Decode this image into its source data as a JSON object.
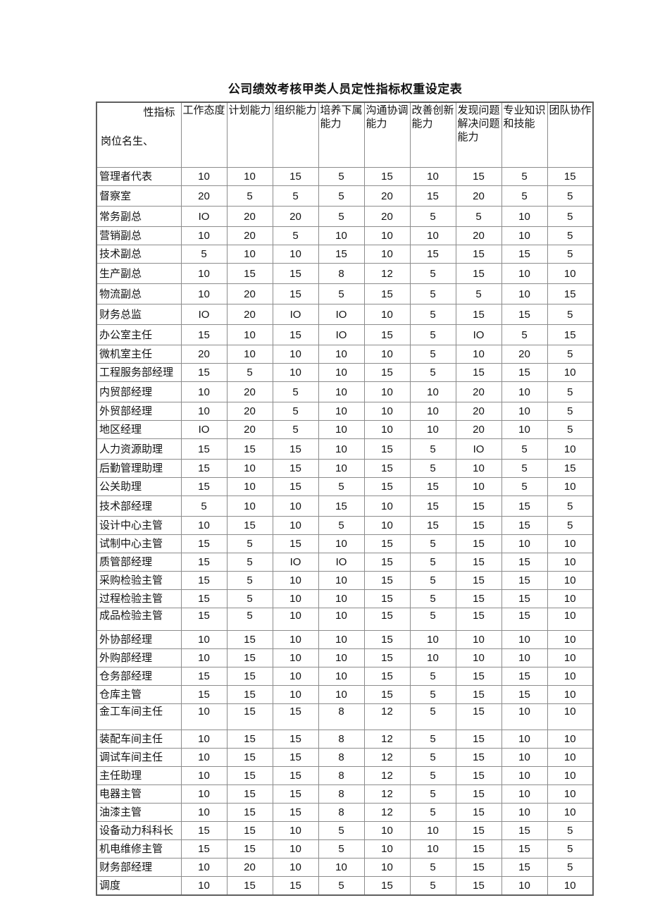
{
  "title": "公司绩效考核甲类人员定性指标权重设定表",
  "table": {
    "corner": {
      "top_right": "性指标",
      "bottom_left": "岗位名生、"
    },
    "columns": [
      "工作态度",
      "计划能力",
      "组织能力",
      "培养下属能力",
      "沟通协调能力",
      "改善创新能力",
      "发现问题解决问题能力",
      "专业知识和技能",
      "团队协作"
    ],
    "rows": [
      {
        "label": "管理者代表",
        "values": [
          "10",
          "10",
          "15",
          "5",
          "15",
          "10",
          "15",
          "5",
          "15"
        ]
      },
      {
        "label": "督察室",
        "values": [
          "20",
          "5",
          "5",
          "5",
          "20",
          "15",
          "20",
          "5",
          "5"
        ]
      },
      {
        "label": "常务副总",
        "values": [
          "IO",
          "20",
          "20",
          "5",
          "20",
          "5",
          "5",
          "10",
          "5"
        ]
      },
      {
        "label": "营销副总",
        "values": [
          "10",
          "20",
          "5",
          "10",
          "10",
          "10",
          "20",
          "10",
          "5"
        ]
      },
      {
        "label": "技术副总",
        "values": [
          "5",
          "10",
          "10",
          "15",
          "10",
          "15",
          "15",
          "15",
          "5"
        ]
      },
      {
        "label": "生产副总",
        "values": [
          "10",
          "15",
          "15",
          "8",
          "12",
          "5",
          "15",
          "10",
          "10"
        ]
      },
      {
        "label": "物流副总",
        "values": [
          "10",
          "20",
          "15",
          "5",
          "15",
          "5",
          "5",
          "10",
          "15"
        ]
      },
      {
        "label": "财务总监",
        "values": [
          "IO",
          "20",
          "IO",
          "IO",
          "10",
          "5",
          "15",
          "15",
          "5"
        ]
      },
      {
        "label": "办公室主任",
        "values": [
          "15",
          "10",
          "15",
          "IO",
          "15",
          "5",
          "IO",
          "5",
          "15"
        ]
      },
      {
        "label": "微机室主任",
        "values": [
          "20",
          "10",
          "10",
          "10",
          "10",
          "5",
          "10",
          "20",
          "5"
        ]
      },
      {
        "label": "工程服务部经理",
        "values": [
          "15",
          "5",
          "10",
          "10",
          "15",
          "5",
          "15",
          "15",
          "10"
        ]
      },
      {
        "label": "内贸部经理",
        "values": [
          "10",
          "20",
          "5",
          "10",
          "10",
          "10",
          "20",
          "10",
          "5"
        ]
      },
      {
        "label": "外贸部经理",
        "values": [
          "10",
          "20",
          "5",
          "10",
          "10",
          "10",
          "20",
          "10",
          "5"
        ]
      },
      {
        "label": "地区经理",
        "values": [
          "IO",
          "20",
          "5",
          "10",
          "10",
          "10",
          "20",
          "10",
          "5"
        ]
      },
      {
        "label": "人力资源助理",
        "values": [
          "15",
          "15",
          "15",
          "10",
          "15",
          "5",
          "IO",
          "5",
          "10"
        ]
      },
      {
        "label": "后勤管理助理",
        "values": [
          "15",
          "10",
          "15",
          "10",
          "15",
          "5",
          "10",
          "5",
          "15"
        ]
      },
      {
        "label": "公关助理",
        "values": [
          "15",
          "10",
          "15",
          "5",
          "15",
          "15",
          "10",
          "5",
          "10"
        ]
      },
      {
        "label": "技术部经理",
        "values": [
          "5",
          "10",
          "10",
          "15",
          "10",
          "15",
          "15",
          "15",
          "5"
        ]
      },
      {
        "label": "设计中心主管",
        "values": [
          "10",
          "15",
          "10",
          "5",
          "10",
          "15",
          "15",
          "15",
          "5"
        ]
      },
      {
        "label": "试制中心主管",
        "values": [
          "15",
          "5",
          "15",
          "10",
          "15",
          "5",
          "15",
          "10",
          "10"
        ]
      },
      {
        "label": "质管部经理",
        "values": [
          "15",
          "5",
          "IO",
          "IO",
          "15",
          "5",
          "15",
          "15",
          "10"
        ]
      },
      {
        "label": "采购检验主管",
        "values": [
          "15",
          "5",
          "10",
          "10",
          "15",
          "5",
          "15",
          "15",
          "10"
        ]
      },
      {
        "label": "过程检验主管",
        "values": [
          "15",
          "5",
          "10",
          "10",
          "15",
          "5",
          "15",
          "15",
          "10"
        ]
      },
      {
        "label": "成品检验主管",
        "values": [
          "15",
          "5",
          "10",
          "10",
          "15",
          "5",
          "15",
          "15",
          "10"
        ]
      },
      {
        "label": "外协部经理",
        "values": [
          "10",
          "15",
          "10",
          "10",
          "15",
          "10",
          "10",
          "10",
          "10"
        ]
      },
      {
        "label": "外购部经理",
        "values": [
          "10",
          "15",
          "10",
          "10",
          "15",
          "10",
          "10",
          "10",
          "10"
        ]
      },
      {
        "label": "仓务部经理",
        "values": [
          "15",
          "15",
          "10",
          "10",
          "15",
          "5",
          "15",
          "15",
          "10"
        ]
      },
      {
        "label": "仓库主管",
        "values": [
          "15",
          "15",
          "10",
          "10",
          "15",
          "5",
          "15",
          "15",
          "10"
        ]
      },
      {
        "label": "金工车间主任",
        "values": [
          "10",
          "15",
          "15",
          "8",
          "12",
          "5",
          "15",
          "10",
          "10"
        ]
      },
      {
        "label": "装配车间主任",
        "values": [
          "10",
          "15",
          "15",
          "8",
          "12",
          "5",
          "15",
          "10",
          "10"
        ]
      },
      {
        "label": "调试车间主任",
        "values": [
          "10",
          "15",
          "15",
          "8",
          "12",
          "5",
          "15",
          "10",
          "10"
        ]
      },
      {
        "label": "主任助理",
        "values": [
          "10",
          "15",
          "15",
          "8",
          "12",
          "5",
          "15",
          "10",
          "10"
        ]
      },
      {
        "label": "电器主管",
        "values": [
          "10",
          "15",
          "15",
          "8",
          "12",
          "5",
          "15",
          "10",
          "10"
        ]
      },
      {
        "label": "油漆主管",
        "values": [
          "10",
          "15",
          "15",
          "8",
          "12",
          "5",
          "15",
          "10",
          "10"
        ]
      },
      {
        "label": "设备动力科科长",
        "values": [
          "15",
          "15",
          "10",
          "5",
          "10",
          "10",
          "15",
          "15",
          "5"
        ]
      },
      {
        "label": "机电维修主管",
        "values": [
          "15",
          "15",
          "10",
          "5",
          "10",
          "10",
          "15",
          "15",
          "5"
        ]
      },
      {
        "label": "财务部经理",
        "values": [
          "10",
          "20",
          "10",
          "10",
          "10",
          "5",
          "15",
          "15",
          "5"
        ]
      },
      {
        "label": "调度",
        "values": [
          "10",
          "15",
          "15",
          "5",
          "15",
          "5",
          "15",
          "10",
          "10"
        ]
      }
    ]
  }
}
